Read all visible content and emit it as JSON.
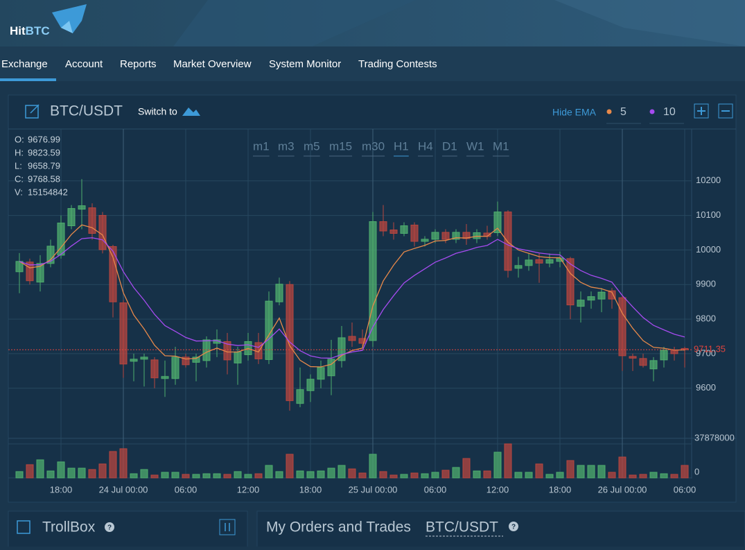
{
  "header": {
    "logo_left": "Hit",
    "logo_right": "BTC"
  },
  "nav": {
    "items": [
      "Exchange",
      "Account",
      "Reports",
      "Market Overview",
      "System Monitor",
      "Trading Contests"
    ],
    "active": 0
  },
  "chart_panel": {
    "pair": "BTC/USDT",
    "switch": "Switch to",
    "hide_ema": "Hide EMA",
    "timeframes": [
      "m1",
      "m3",
      "m5",
      "m15",
      "m30",
      "H1",
      "H4",
      "D1",
      "W1",
      "M1"
    ],
    "active_timeframe": 5,
    "ohlc": [
      {
        "label": "O:",
        "value": "9676.99"
      },
      {
        "label": "H:",
        "value": "9823.59"
      },
      {
        "label": "L:",
        "value": "9658.79"
      },
      {
        "label": "C:",
        "value": "9768.58"
      },
      {
        "label": "V:",
        "value": "15154842"
      }
    ]
  },
  "chart_data": {
    "type": "candlestick",
    "categories": [
      null,
      null,
      null,
      null,
      "18:00",
      null,
      null,
      null,
      null,
      null,
      "24 Jul 00:00",
      null,
      null,
      null,
      null,
      null,
      "06:00",
      null,
      null,
      null,
      null,
      null,
      "12:00",
      null,
      null,
      null,
      null,
      null,
      "18:00",
      null,
      null,
      null,
      null,
      null,
      "25 Jul 00:00",
      null,
      null,
      null,
      null,
      null,
      "06:00",
      null,
      null,
      null,
      null,
      null,
      "12:00",
      null,
      null,
      null,
      null,
      null,
      "18:00",
      null,
      null,
      null,
      null,
      null,
      "26 Jul 00:00",
      null,
      null,
      null,
      null,
      null,
      "06:00"
    ],
    "open": [
      9937,
      9965,
      9907,
      9961,
      9985,
      10070,
      10118,
      10122,
      10100,
      10010,
      9847,
      9678,
      9684,
      9682,
      9628,
      9628,
      9690,
      9675,
      9680,
      9730,
      9735,
      9673,
      9697,
      9732,
      9683,
      9850,
      9900,
      9556,
      9593,
      9626,
      9636,
      9680,
      9750,
      9744,
      9738,
      10082,
      10058,
      10048,
      10072,
      10025,
      10031,
      10051,
      10031,
      10051,
      10033,
      10049,
      10050,
      10110,
      9947,
      9955,
      9972,
      9962,
      9967,
      9975,
      9837,
      9855,
      9858,
      9882,
      9862,
      9692,
      9686,
      9656,
      9682,
      9710,
      9715
    ],
    "high": [
      9991,
      9975,
      9985,
      10030,
      10100,
      10130,
      10205,
      10135,
      10110,
      10015,
      9855,
      9700,
      9700,
      9690,
      9680,
      9720,
      9700,
      9700,
      9750,
      9770,
      9760,
      9720,
      9760,
      9760,
      9880,
      9920,
      9910,
      9660,
      9640,
      9680,
      9740,
      9780,
      9790,
      9770,
      10110,
      10130,
      10080,
      10080,
      10080,
      10040,
      10060,
      10060,
      10060,
      10075,
      10060,
      10070,
      10140,
      10115,
      9980,
      9990,
      9990,
      9990,
      9995,
      9980,
      9880,
      9880,
      9890,
      9890,
      9870,
      9700,
      9700,
      9690,
      9720,
      9720,
      9720
    ],
    "low": [
      9875,
      9900,
      9880,
      9950,
      9975,
      10060,
      10060,
      10030,
      9990,
      9805,
      9630,
      9620,
      9605,
      9600,
      9575,
      9610,
      9660,
      9620,
      9660,
      9690,
      9640,
      9610,
      9680,
      9670,
      9670,
      9840,
      9535,
      9545,
      9560,
      9600,
      9580,
      9660,
      9720,
      9720,
      9720,
      10040,
      10030,
      10040,
      10010,
      10010,
      10020,
      10020,
      10020,
      10015,
      10020,
      10030,
      10040,
      9920,
      9920,
      9940,
      9905,
      9950,
      9950,
      9800,
      9790,
      9830,
      9820,
      9830,
      9650,
      9650,
      9660,
      9620,
      9660,
      9680,
      9660
    ],
    "close": [
      9967,
      9911,
      9961,
      10011,
      10078,
      10120,
      10128,
      10048,
      10001,
      9850,
      9670,
      9684,
      9690,
      9630,
      9634,
      9690,
      9668,
      9690,
      9740,
      9740,
      9682,
      9705,
      9735,
      9685,
      9852,
      9901,
      9564,
      9596,
      9626,
      9660,
      9684,
      9746,
      9738,
      9730,
      10082,
      10055,
      10048,
      10070,
      10025,
      10031,
      10051,
      10031,
      10051,
      10033,
      10050,
      10039,
      10110,
      9941,
      9955,
      9971,
      9962,
      9972,
      9977,
      9841,
      9855,
      9865,
      9878,
      9858,
      9694,
      9687,
      9666,
      9680,
      9710,
      9700,
      9711.35
    ],
    "volume": [
      7000000,
      14700000,
      20100000,
      7700000,
      17800000,
      10800000,
      10800000,
      9300000,
      15500000,
      29400000,
      32500000,
      4600000,
      9300000,
      3100000,
      6200000,
      6200000,
      3900000,
      3900000,
      4600000,
      4600000,
      3900000,
      7000000,
      3900000,
      4600000,
      13900000,
      7000000,
      26300000,
      7700000,
      7000000,
      7700000,
      10800000,
      13900000,
      10000000,
      5400000,
      26300000,
      7000000,
      3100000,
      3900000,
      5400000,
      4600000,
      6200000,
      8500000,
      11600000,
      21600000,
      7700000,
      7700000,
      28600000,
      37878000,
      6200000,
      6200000,
      15500000,
      3900000,
      6200000,
      19300000,
      13900000,
      13900000,
      13900000,
      6200000,
      23200000,
      3100000,
      3900000,
      6200000,
      4600000,
      3900000,
      13900000
    ],
    "ylim": [
      9455,
      10350
    ],
    "yticks": [
      9600,
      9700,
      9800,
      9900,
      10000,
      10100,
      10200
    ],
    "y2lim": [
      0,
      37878000
    ],
    "y2ticks": [
      0,
      37878000
    ],
    "up_color": "#4fae6e",
    "down_color": "#b8463f",
    "last_price": {
      "value": 9711.35,
      "color": "#e0443e"
    },
    "ema": [
      {
        "period": 5,
        "color": "#e8894a"
      },
      {
        "period": 10,
        "color": "#a64bf0"
      }
    ],
    "grid": true
  },
  "panels": {
    "trollbox": "TrollBox",
    "orders": "My Orders and Trades",
    "orders_pair": "BTC/USDT",
    "help": "?"
  }
}
